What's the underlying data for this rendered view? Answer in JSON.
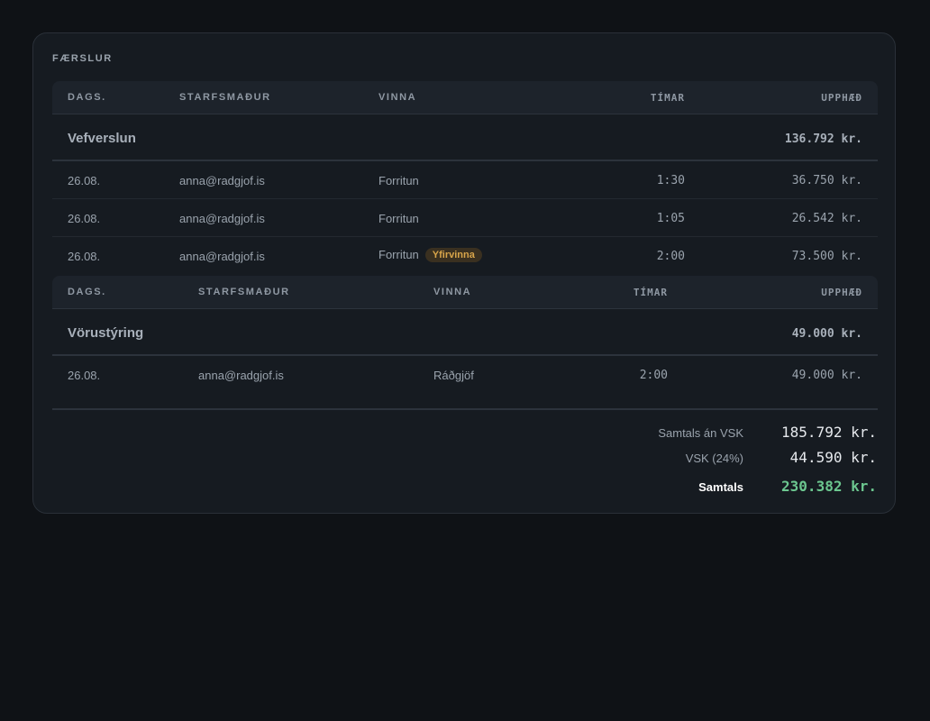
{
  "section_title": "FÆRSLUR",
  "columns": {
    "date": "DAGS.",
    "employee": "STARFSMAÐUR",
    "work": "VINNA",
    "hours": "TÍMAR",
    "amount": "UPPHÆÐ"
  },
  "groups": [
    {
      "name": "Vefverslun",
      "total": "136.792 kr.",
      "rows": [
        {
          "date": "26.08.",
          "employee": "anna@radgjof.is",
          "work": "Forritun",
          "hours": "1:30",
          "amount": "36.750 kr."
        },
        {
          "date": "26.08.",
          "employee": "anna@radgjof.is",
          "work": "Forritun",
          "hours": "1:05",
          "amount": "26.542 kr."
        },
        {
          "date": "26.08.",
          "employee": "anna@radgjof.is",
          "work": "Forritun",
          "badge": "Yfirvinna",
          "hours": "2:00",
          "amount": "73.500 kr."
        }
      ]
    },
    {
      "name": "Vörustýring",
      "total": "49.000 kr.",
      "rows": [
        {
          "date": "26.08.",
          "employee": "anna@radgjof.is",
          "work": "Ráðgjöf",
          "hours": "2:00",
          "amount": "49.000 kr."
        }
      ]
    }
  ],
  "summary": {
    "subtotal_label": "Samtals án VSK",
    "subtotal_value": "185.792 kr.",
    "vat_label": "VSK (24%)",
    "vat_value": "44.590 kr.",
    "total_label": "Samtals",
    "total_value": "230.382 kr."
  },
  "colors": {
    "background": "#0f1216",
    "card": "#161b21",
    "accent_total": "#6cc68f",
    "badge_text": "#d9a54a"
  }
}
